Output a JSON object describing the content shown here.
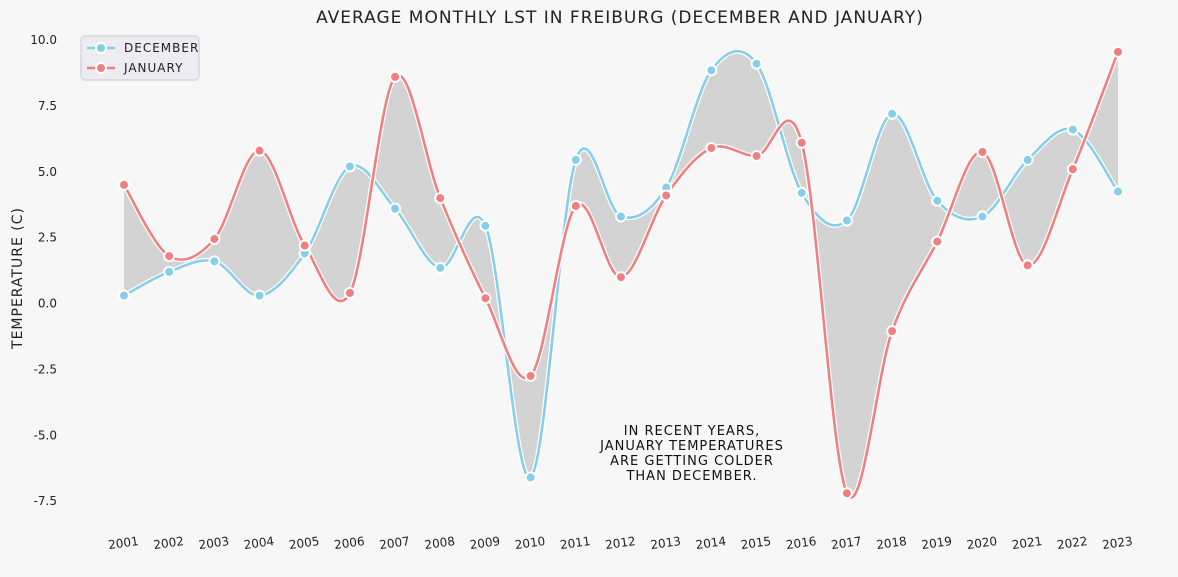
{
  "chart_data": {
    "type": "line",
    "title": "AVERAGE MONTHLY LST IN FREIBURG (DECEMBER AND JANUARY)",
    "xlabel": "",
    "ylabel": "TEMPERATURE (C)",
    "categories": [
      "2001",
      "2002",
      "2003",
      "2004",
      "2005",
      "2006",
      "2007",
      "2008",
      "2009",
      "2010",
      "2011",
      "2012",
      "2013",
      "2014",
      "2015",
      "2016",
      "2017",
      "2018",
      "2019",
      "2020",
      "2021",
      "2022",
      "2023"
    ],
    "series": [
      {
        "name": "DECEMBER",
        "color": "#87ceeb",
        "values": [
          0.3,
          1.2,
          1.6,
          0.3,
          1.9,
          5.2,
          3.6,
          1.35,
          2.95,
          -6.6,
          5.45,
          3.3,
          4.4,
          8.85,
          9.1,
          4.2,
          3.15,
          7.2,
          3.9,
          3.3,
          5.45,
          6.6,
          4.25
        ]
      },
      {
        "name": "JANUARY",
        "color": "#f08080",
        "values": [
          4.5,
          1.8,
          2.45,
          5.8,
          2.2,
          0.4,
          8.6,
          4.0,
          0.2,
          -2.75,
          3.7,
          1.0,
          4.1,
          5.9,
          5.6,
          6.1,
          -7.2,
          -1.05,
          2.35,
          5.75,
          1.45,
          5.1,
          9.55
        ]
      }
    ],
    "ylim": [
      -8.0,
      10.2
    ],
    "yticks": [
      "10.0",
      "7.5",
      "5.0",
      "2.5",
      "0.0",
      "-2.5",
      "-5.0",
      "-7.5"
    ],
    "ytick_values": [
      10.0,
      7.5,
      5.0,
      2.5,
      0.0,
      -2.5,
      -5.0,
      -7.5
    ],
    "grid": false,
    "legend_position": "top-left",
    "fill_between_color": "#d3d3d3",
    "annotation": {
      "lines": [
        "IN RECENT YEARS,",
        "JANUARY TEMPERATURES",
        "ARE GETTING COLDER",
        "THAN DECEMBER."
      ]
    }
  }
}
